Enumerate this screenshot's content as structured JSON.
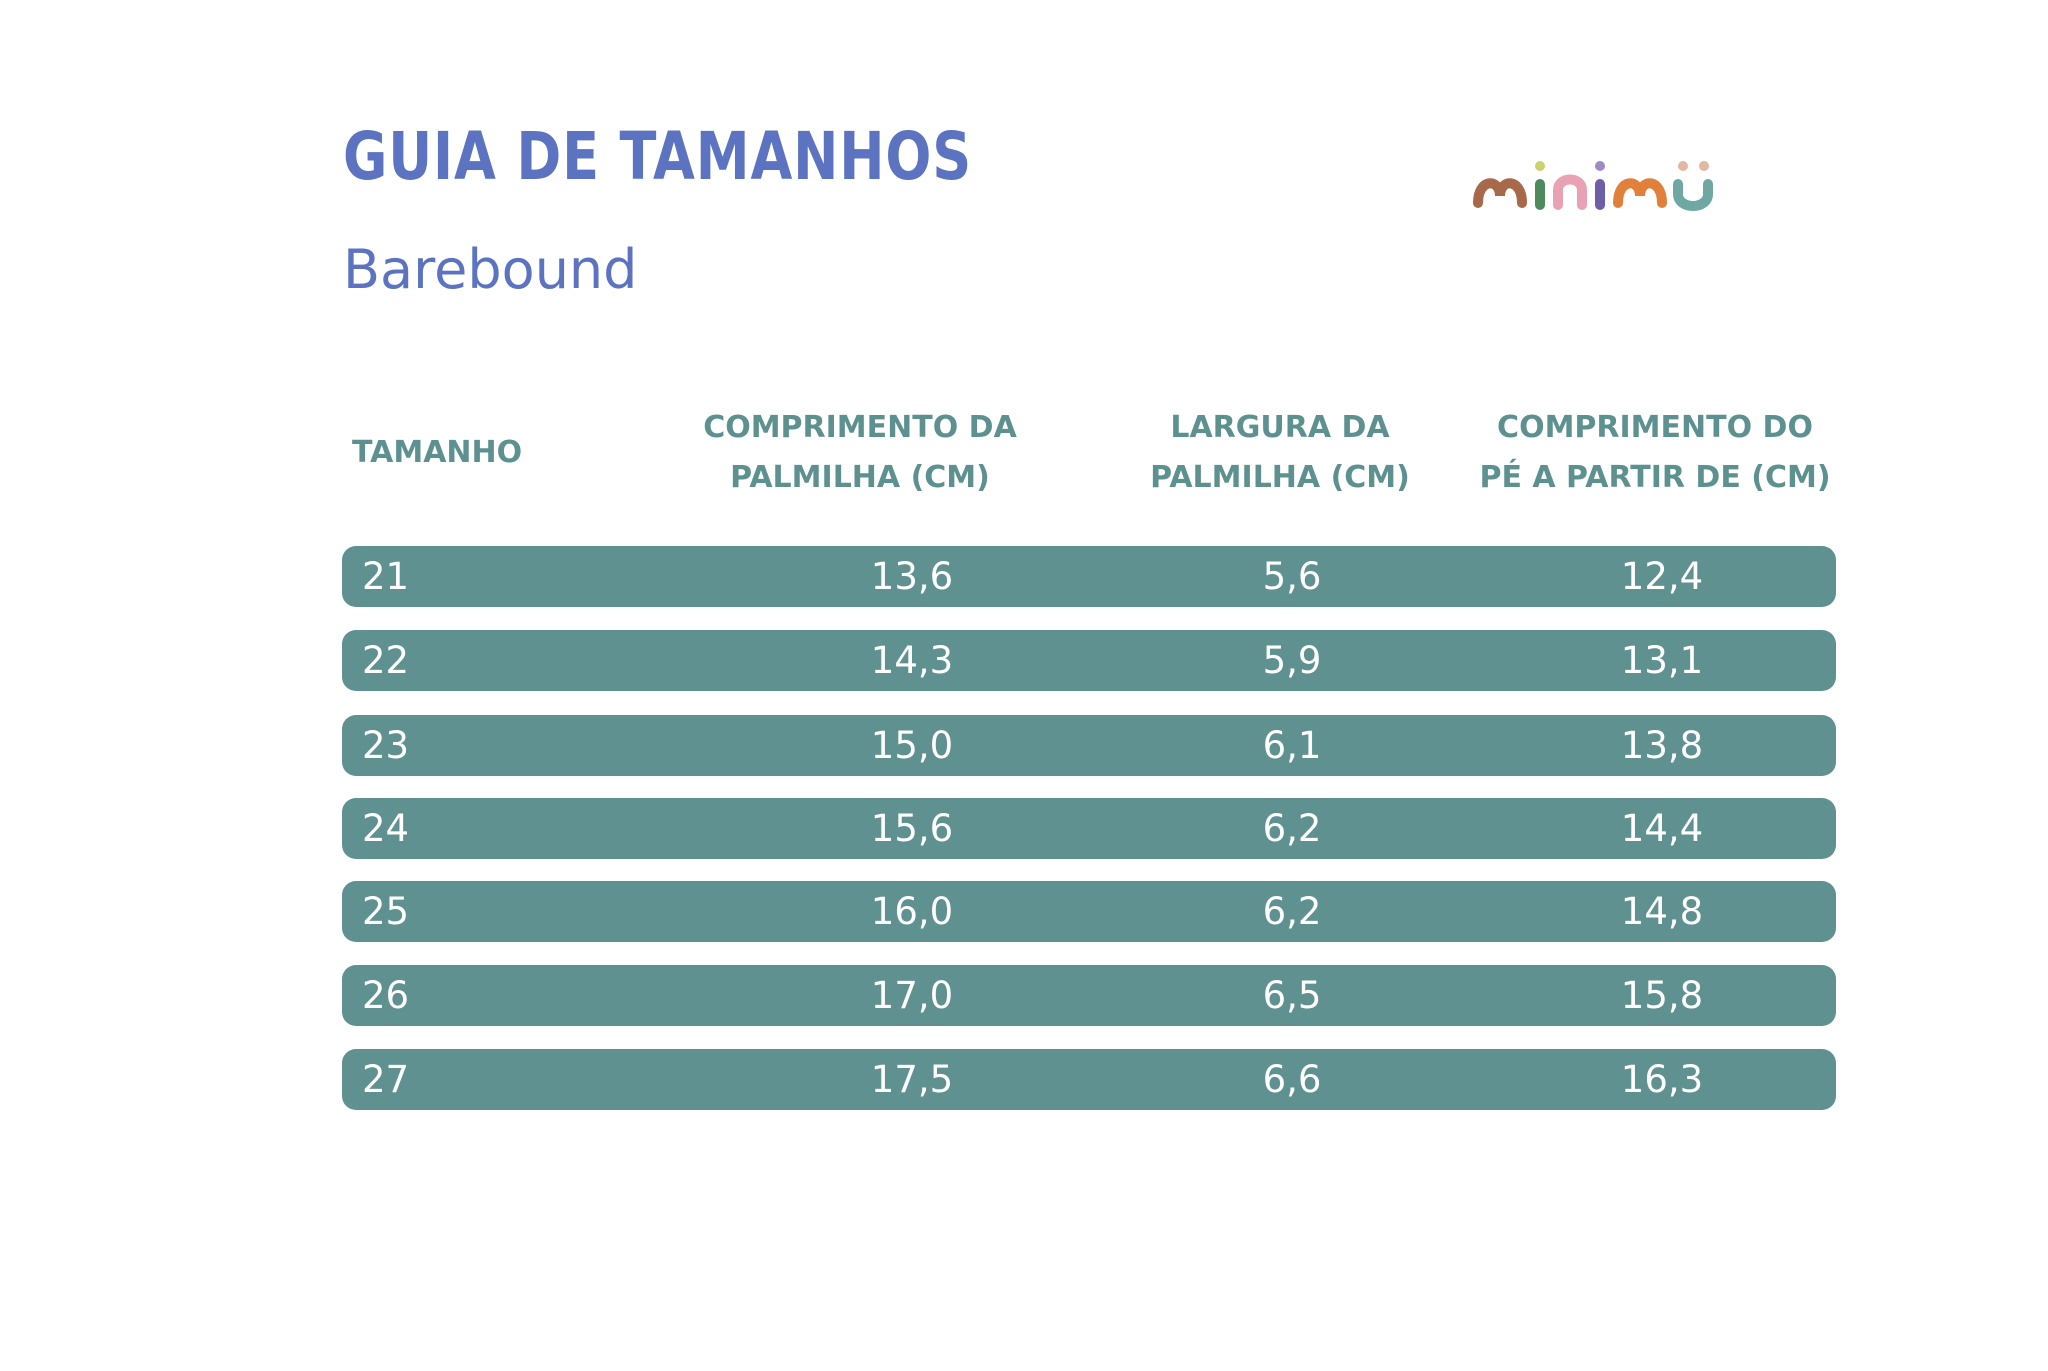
{
  "header": {
    "title": "GUIA DE TAMANHOS",
    "subtitle": "Barebound",
    "logo_text": "minimü"
  },
  "table": {
    "columns": [
      {
        "key": "size",
        "lines": [
          "TAMANHO"
        ]
      },
      {
        "key": "insole_length",
        "lines": [
          "COMPRIMENTO DA",
          "PALMILHA (CM)"
        ]
      },
      {
        "key": "insole_width",
        "lines": [
          "LARGURA DA",
          "PALMILHA (CM)"
        ]
      },
      {
        "key": "foot_length",
        "lines": [
          "COMPRIMENTO DO",
          "PÉ A PARTIR DE (CM)"
        ]
      }
    ],
    "rows": [
      {
        "size": "21",
        "insole_length": "13,6",
        "insole_width": "5,6",
        "foot_length": "12,4"
      },
      {
        "size": "22",
        "insole_length": "14,3",
        "insole_width": "5,9",
        "foot_length": "13,1"
      },
      {
        "size": "23",
        "insole_length": "15,0",
        "insole_width": "6,1",
        "foot_length": "13,8"
      },
      {
        "size": "24",
        "insole_length": "15,6",
        "insole_width": "6,2",
        "foot_length": "14,4"
      },
      {
        "size": "25",
        "insole_length": "16,0",
        "insole_width": "6,2",
        "foot_length": "14,8"
      },
      {
        "size": "26",
        "insole_length": "17,0",
        "insole_width": "6,5",
        "foot_length": "15,8"
      },
      {
        "size": "27",
        "insole_length": "17,5",
        "insole_width": "6,6",
        "foot_length": "16,3"
      }
    ]
  },
  "colors": {
    "title": "#5b73c0",
    "header_text": "#5d9190",
    "row_background": "#5f9190",
    "row_text": "#ffffff"
  }
}
